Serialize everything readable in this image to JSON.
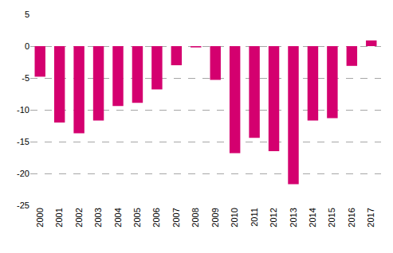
{
  "chart_data": {
    "type": "bar",
    "categories": [
      "2000",
      "2001",
      "2002",
      "2003",
      "2004",
      "2005",
      "2006",
      "2007",
      "2008",
      "2009",
      "2010",
      "2011",
      "2012",
      "2013",
      "2014",
      "2015",
      "2016",
      "2017"
    ],
    "values": [
      -4.8,
      -12.0,
      -13.7,
      -11.7,
      -9.4,
      -8.9,
      -6.8,
      -3.0,
      -0.2,
      -5.3,
      -16.8,
      -14.4,
      -16.5,
      -21.7,
      -11.7,
      -11.3,
      -3.1,
      0.9
    ],
    "color": "#d4006f",
    "ylim": [
      -25,
      5
    ],
    "yticks": [
      -25,
      -20,
      -15,
      -10,
      -5,
      0,
      5
    ],
    "grid": true
  }
}
